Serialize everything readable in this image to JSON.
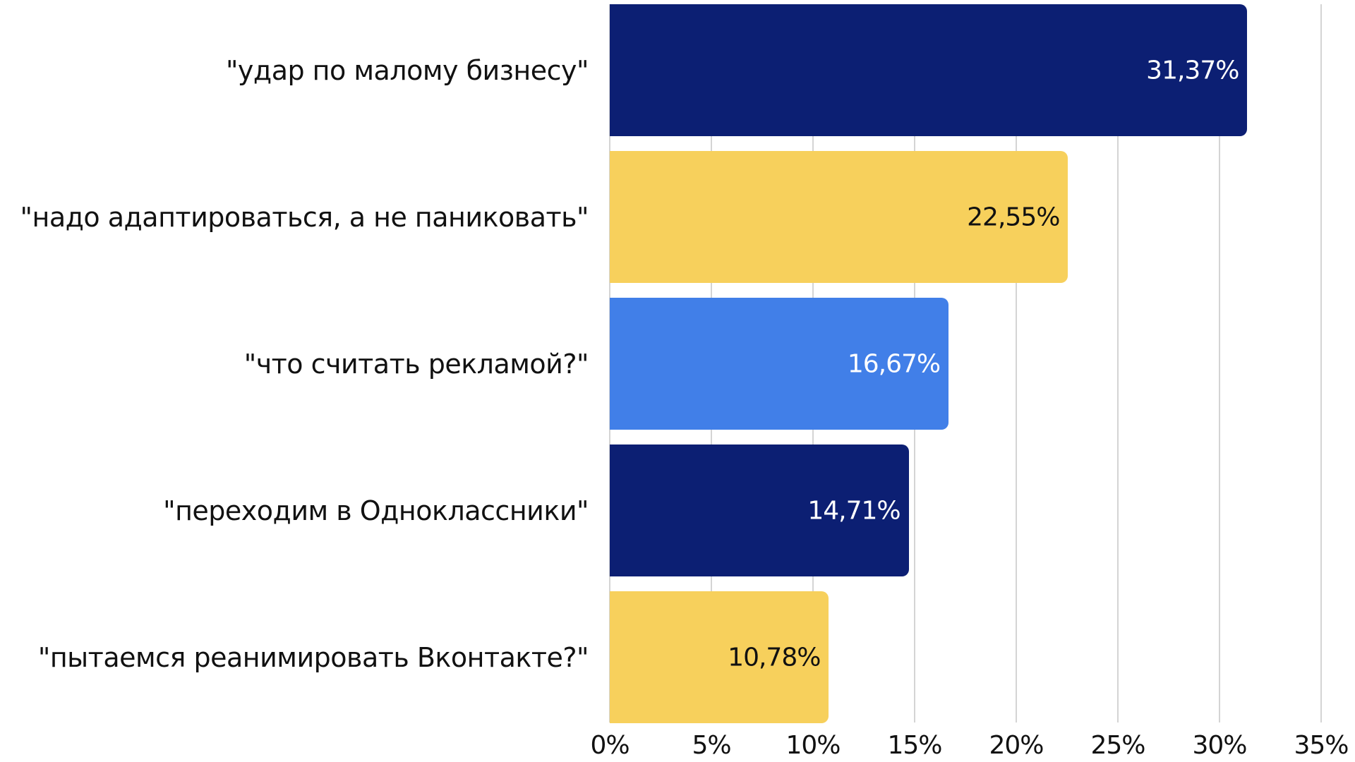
{
  "chart_data": {
    "type": "bar",
    "orientation": "horizontal",
    "title": "",
    "xlabel": "",
    "ylabel": "",
    "xlim": [
      0,
      35
    ],
    "grid": true,
    "categories": [
      "\"удар по малому бизнесу\"",
      "\"надо адаптироваться, а не паниковать\"",
      "\"что считать рекламой?\"",
      "\"переходим в Одноклассники\"",
      "\"пытаемся реанимировать Вконтакте?\""
    ],
    "values": [
      31.37,
      22.55,
      16.67,
      14.71,
      10.78
    ],
    "value_labels": [
      "31,37%",
      "22,55%",
      "16,67%",
      "14,71%",
      "10,78%"
    ],
    "bar_colors": [
      "#0c1f73",
      "#f7d05c",
      "#417fe8",
      "#0c1f73",
      "#f7d05c"
    ],
    "label_colors": [
      "#ffffff",
      "#111111",
      "#ffffff",
      "#ffffff",
      "#111111"
    ],
    "x_ticks": [
      "0%",
      "5%",
      "10%",
      "15%",
      "20%",
      "25%",
      "30%",
      "35%"
    ]
  }
}
